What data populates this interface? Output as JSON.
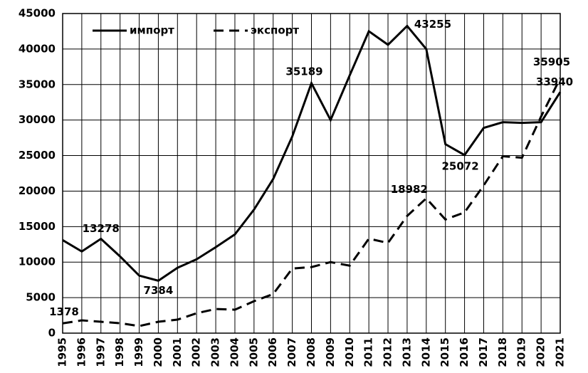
{
  "chart_data": {
    "type": "line",
    "x": [
      1995,
      1996,
      1997,
      1998,
      1999,
      2000,
      2001,
      2002,
      2003,
      2004,
      2005,
      2006,
      2007,
      2008,
      2009,
      2010,
      2011,
      2012,
      2013,
      2014,
      2015,
      2016,
      2017,
      2018,
      2019,
      2020,
      2021
    ],
    "xlim": [
      1995,
      2021
    ],
    "xticks": [
      1995,
      1996,
      1997,
      1998,
      1999,
      2000,
      2001,
      2002,
      2003,
      2004,
      2005,
      2006,
      2007,
      2008,
      2009,
      2010,
      2011,
      2012,
      2013,
      2014,
      2015,
      2016,
      2017,
      2018,
      2019,
      2020,
      2021
    ],
    "ylim": [
      0,
      45000
    ],
    "yticks": [
      0,
      5000,
      10000,
      15000,
      20000,
      25000,
      30000,
      35000,
      40000,
      45000
    ],
    "grid": true,
    "legend": "top-left",
    "series": [
      {
        "name": "импорт",
        "color": "#000000",
        "dash": "solid",
        "values": [
          13100,
          11500,
          13278,
          10800,
          8100,
          7384,
          9200,
          10400,
          12100,
          13900,
          17400,
          21700,
          27700,
          35189,
          30000,
          36300,
          42500,
          40600,
          43255,
          40000,
          26600,
          25072,
          28900,
          29700,
          29600,
          29700,
          33940
        ]
      },
      {
        "name": "экспорт",
        "color": "#000000",
        "dash": "dashed",
        "values": [
          1378,
          1800,
          1600,
          1400,
          1000,
          1600,
          1900,
          2800,
          3400,
          3300,
          4500,
          5500,
          9100,
          9300,
          10000,
          9500,
          13300,
          12700,
          16500,
          18982,
          16000,
          17000,
          20800,
          24900,
          24700,
          30500,
          35905
        ]
      }
    ]
  }
}
